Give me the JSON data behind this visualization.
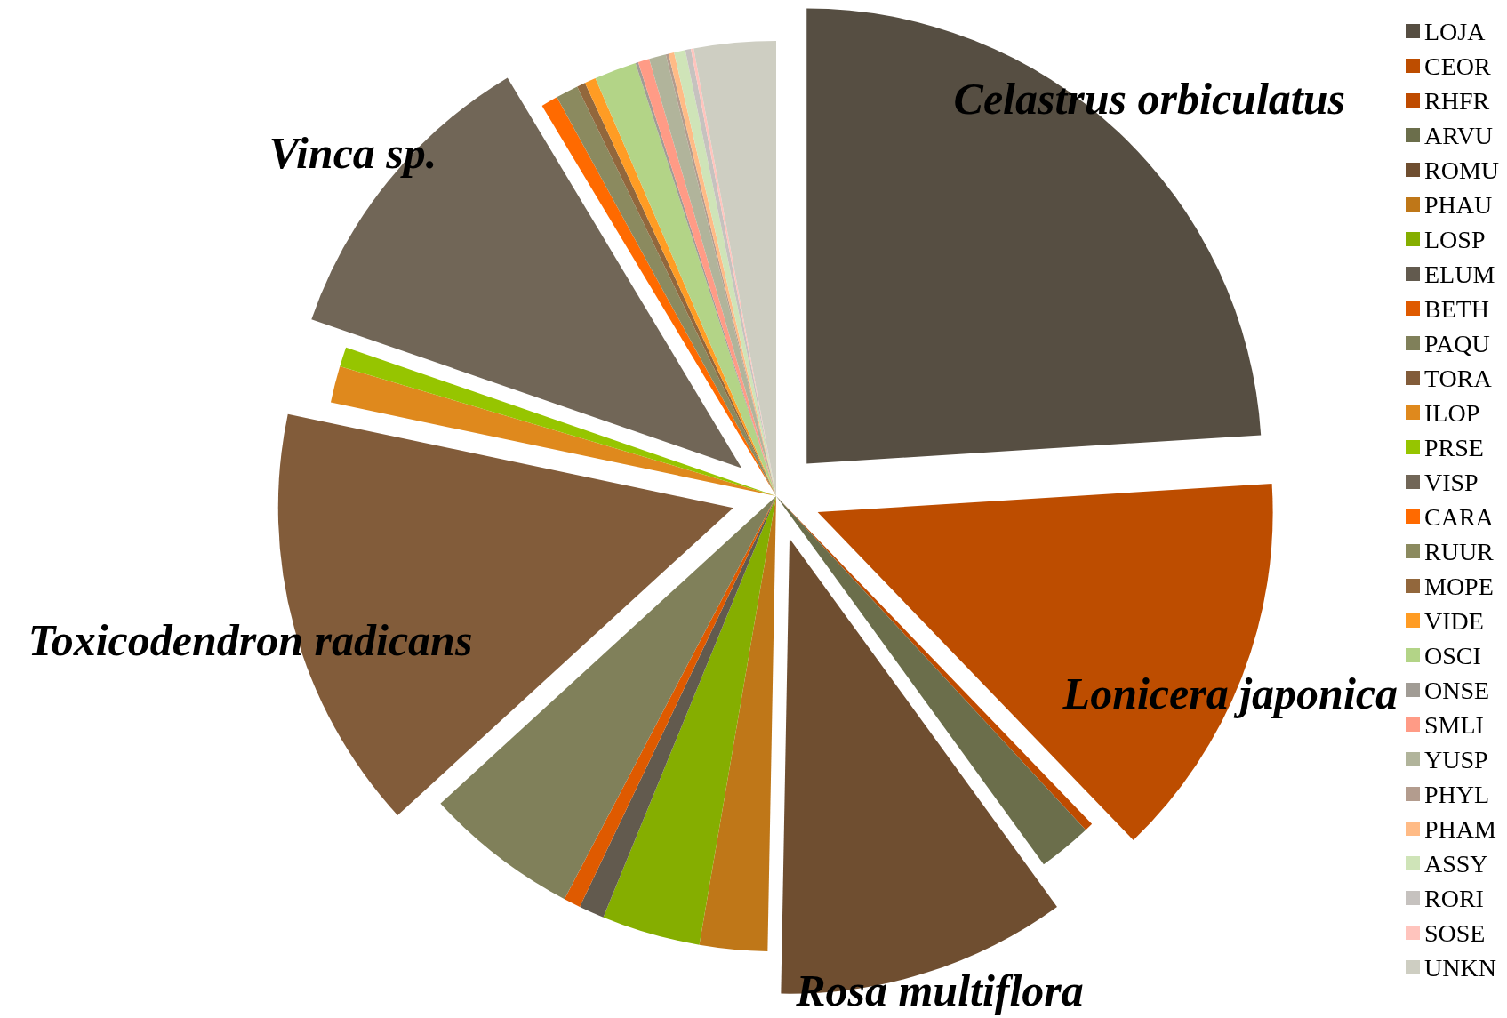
{
  "chart_data": {
    "type": "pie",
    "categories": [
      "LOJA",
      "CEOR",
      "RHFR",
      "ARVU",
      "ROMU",
      "PHAU",
      "LOSP",
      "ELUM",
      "BETH",
      "PAQU",
      "TORA",
      "ILOP",
      "PRSE",
      "VISP",
      "CARA",
      "RUUR",
      "MOPE",
      "VIDE",
      "OSCI",
      "ONSE",
      "SMLI",
      "YUSP",
      "PHYL",
      "PHAM",
      "ASSY",
      "RORI",
      "SOSE",
      "UNKN"
    ],
    "values": [
      24.0,
      13.8,
      0.3,
      1.9,
      10.3,
      2.4,
      3.5,
      0.9,
      0.6,
      5.5,
      15.1,
      1.3,
      0.7,
      11.1,
      0.6,
      0.8,
      0.3,
      0.4,
      1.5,
      0.1,
      0.4,
      0.6,
      0.1,
      0.2,
      0.4,
      0.2,
      0.1,
      2.9
    ],
    "colors": [
      "#564e42",
      "#bd4d00",
      "#bf4b00",
      "#6b6e4b",
      "#6f4e30",
      "#bf7718",
      "#85ae00",
      "#625a4e",
      "#df5a00",
      "#80805a",
      "#825c3a",
      "#df891d",
      "#96c500",
      "#716657",
      "#ff6a00",
      "#8b8a5f",
      "#92673c",
      "#ff9c24",
      "#b3d487",
      "#a19c95",
      "#ff9b86",
      "#b1b49b",
      "#b39c8e",
      "#ffbb86",
      "#cfe4b8",
      "#c6c2bf",
      "#ffc4bd",
      "#cecec2"
    ],
    "legend": "right",
    "annotations": [
      {
        "text": "Celastrus orbiculatus",
        "x": "LOJA"
      },
      {
        "text": "Lonicera japonica",
        "x": "CEOR"
      },
      {
        "text": "Rosa multiflora",
        "x": "ROMU"
      },
      {
        "text": "Toxicodendron radicans",
        "x": "TORA"
      },
      {
        "text": "Vinca sp.",
        "x": "VISP"
      }
    ]
  }
}
